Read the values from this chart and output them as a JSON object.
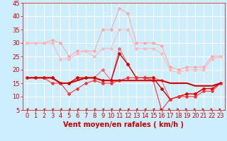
{
  "title": "",
  "xlabel": "Vent moyen/en rafales ( km/h )",
  "ylabel": "",
  "background_color": "#cceeff",
  "grid_color": "#ffffff",
  "xlim": [
    -0.5,
    23.5
  ],
  "ylim": [
    5,
    45
  ],
  "yticks": [
    5,
    10,
    15,
    20,
    25,
    30,
    35,
    40,
    45
  ],
  "xticks": [
    0,
    1,
    2,
    3,
    4,
    5,
    6,
    7,
    8,
    9,
    10,
    11,
    12,
    13,
    14,
    15,
    16,
    17,
    18,
    19,
    20,
    21,
    22,
    23
  ],
  "x": [
    0,
    1,
    2,
    3,
    4,
    5,
    6,
    7,
    8,
    9,
    10,
    11,
    12,
    13,
    14,
    15,
    16,
    17,
    18,
    19,
    20,
    21,
    22,
    23
  ],
  "series": [
    {
      "name": "rafales_max",
      "color": "#ffaaaa",
      "linewidth": 0.8,
      "marker": "D",
      "markersize": 2,
      "y": [
        30,
        30,
        30,
        31,
        30,
        25,
        27,
        27,
        27,
        35,
        35,
        43,
        41,
        30,
        30,
        30,
        29,
        21,
        20,
        21,
        21,
        21,
        25,
        25
      ]
    },
    {
      "name": "rafales_moy",
      "color": "#ffbbbb",
      "linewidth": 0.8,
      "marker": "D",
      "markersize": 2,
      "y": [
        30,
        30,
        30,
        30,
        24,
        24,
        26,
        27,
        25,
        28,
        28,
        35,
        35,
        28,
        28,
        28,
        26,
        20,
        19,
        20,
        20,
        20,
        24,
        25
      ]
    },
    {
      "name": "vent_max",
      "color": "#ff6666",
      "linewidth": 0.8,
      "marker": "D",
      "markersize": 2,
      "y": [
        17,
        17,
        17,
        17,
        15,
        15,
        17,
        17,
        17,
        20,
        16,
        28,
        22,
        17,
        17,
        17,
        16,
        9,
        10,
        11,
        11,
        13,
        13,
        15
      ]
    },
    {
      "name": "vent_moy",
      "color": "#dd0000",
      "linewidth": 1.0,
      "marker": "D",
      "markersize": 2,
      "y": [
        17,
        17,
        17,
        17,
        15,
        15,
        17,
        17,
        17,
        16,
        16,
        26,
        22,
        17,
        17,
        17,
        13,
        9,
        10,
        11,
        11,
        13,
        13,
        15
      ]
    },
    {
      "name": "vent_min",
      "color": "#ff3333",
      "linewidth": 0.8,
      "marker": "D",
      "markersize": 2,
      "y": [
        17,
        17,
        17,
        15,
        15,
        11,
        13,
        15,
        16,
        15,
        15,
        16,
        17,
        17,
        17,
        16,
        5,
        9,
        10,
        10,
        10,
        12,
        12,
        15
      ]
    },
    {
      "name": "vent_ligne",
      "color": "#cc0000",
      "linewidth": 1.5,
      "marker": null,
      "markersize": 0,
      "y": [
        17,
        17,
        17,
        17,
        15,
        15,
        16,
        17,
        17,
        16,
        16,
        16,
        16,
        16,
        16,
        16,
        16,
        15,
        15,
        15,
        14,
        14,
        14,
        15
      ]
    }
  ],
  "arrow_angles": [
    270,
    270,
    270,
    270,
    270,
    270,
    270,
    270,
    270,
    270,
    270,
    270,
    270,
    270,
    270,
    270,
    90,
    90,
    90,
    90,
    90,
    90,
    90,
    90
  ],
  "xlabel_color": "#cc0000",
  "xlabel_fontsize": 7,
  "tick_color": "#cc0000",
  "tick_fontsize": 6,
  "arrow_color": "#cc0000"
}
